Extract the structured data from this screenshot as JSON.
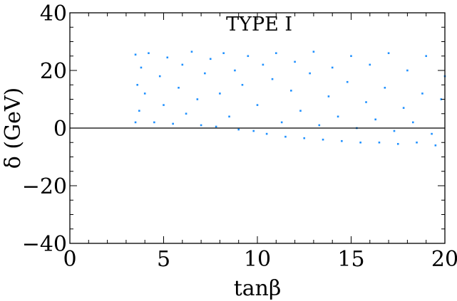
{
  "chart_data": {
    "type": "scatter",
    "title": "",
    "annotation": "TYPE I",
    "xlabel": "tanβ",
    "ylabel": "δ (GeV)",
    "xlim": [
      0,
      20
    ],
    "ylim": [
      -40,
      40
    ],
    "x_ticks": [
      0,
      5,
      10,
      15,
      20
    ],
    "x_tick_labels": [
      "0",
      "5",
      "10",
      "15",
      "20"
    ],
    "y_ticks": [
      -40,
      -20,
      0,
      20,
      40
    ],
    "y_tick_labels": [
      "−40",
      "−20",
      "0",
      "20",
      "40"
    ],
    "x_minor_step": 1,
    "y_minor_step": 5,
    "grid": false,
    "legend": "none",
    "reference_line_y": 0,
    "point_color": "#1e90ff",
    "line_color": "#000000",
    "series": [
      {
        "points": [
          [
            3.5,
            2.0
          ],
          [
            3.5,
            25.5
          ],
          [
            3.6,
            15.0
          ],
          [
            3.7,
            6.0
          ],
          [
            3.8,
            21.0
          ],
          [
            4.0,
            12.0
          ],
          [
            4.2,
            26.0
          ],
          [
            4.5,
            2.0
          ],
          [
            4.8,
            18.0
          ],
          [
            5.0,
            8.0
          ],
          [
            5.2,
            24.5
          ],
          [
            5.5,
            1.5
          ],
          [
            5.8,
            14.0
          ],
          [
            6.0,
            22.0
          ],
          [
            6.2,
            5.0
          ],
          [
            6.5,
            26.5
          ],
          [
            6.8,
            10.0
          ],
          [
            7.0,
            1.0
          ],
          [
            7.2,
            19.0
          ],
          [
            7.5,
            24.0
          ],
          [
            7.8,
            0.5
          ],
          [
            8.0,
            12.0
          ],
          [
            8.2,
            26.0
          ],
          [
            8.5,
            4.0
          ],
          [
            8.8,
            20.0
          ],
          [
            9.0,
            -0.5
          ],
          [
            9.2,
            15.0
          ],
          [
            9.5,
            25.0
          ],
          [
            9.8,
            -1.0
          ],
          [
            10.0,
            8.0
          ],
          [
            10.3,
            22.0
          ],
          [
            10.5,
            -2.0
          ],
          [
            10.8,
            17.0
          ],
          [
            11.0,
            26.0
          ],
          [
            11.3,
            2.0
          ],
          [
            11.5,
            -3.0
          ],
          [
            11.8,
            13.0
          ],
          [
            12.0,
            23.0
          ],
          [
            12.3,
            6.0
          ],
          [
            12.5,
            -3.5
          ],
          [
            12.8,
            19.0
          ],
          [
            13.0,
            26.5
          ],
          [
            13.3,
            1.0
          ],
          [
            13.5,
            -4.0
          ],
          [
            13.8,
            11.0
          ],
          [
            14.0,
            21.0
          ],
          [
            14.3,
            4.0
          ],
          [
            14.5,
            -4.5
          ],
          [
            14.8,
            16.0
          ],
          [
            15.0,
            25.0
          ],
          [
            15.3,
            0.0
          ],
          [
            15.5,
            -5.0
          ],
          [
            15.8,
            9.0
          ],
          [
            16.0,
            22.0
          ],
          [
            16.3,
            3.0
          ],
          [
            16.5,
            -5.0
          ],
          [
            16.8,
            14.0
          ],
          [
            17.0,
            26.0
          ],
          [
            17.3,
            -1.0
          ],
          [
            17.5,
            -5.5
          ],
          [
            17.8,
            7.0
          ],
          [
            18.0,
            20.0
          ],
          [
            18.3,
            2.0
          ],
          [
            18.5,
            -5.0
          ],
          [
            18.8,
            12.0
          ],
          [
            19.0,
            25.0
          ],
          [
            19.3,
            -2.0
          ],
          [
            19.5,
            -6.0
          ],
          [
            19.8,
            10.0
          ],
          [
            20.0,
            18.0
          ]
        ]
      }
    ]
  }
}
